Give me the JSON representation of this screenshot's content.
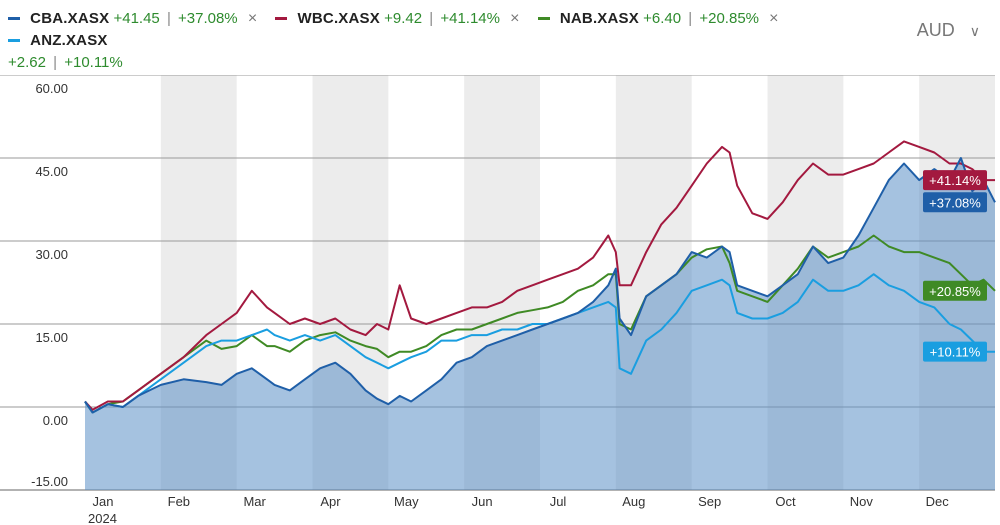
{
  "legend": [
    {
      "ticker": "CBA.XASX",
      "change": "+41.45",
      "pct": "+37.08%",
      "color": "#1f5fa8"
    },
    {
      "ticker": "WBC.XASX",
      "change": "+9.42",
      "pct": "+41.14%",
      "color": "#a3193f"
    },
    {
      "ticker": "NAB.XASX",
      "change": "+6.40",
      "pct": "+20.85%",
      "color": "#3f8a25"
    },
    {
      "ticker": "ANZ.XASX",
      "change": "+2.62",
      "pct": "+10.11%",
      "color": "#1a9ee0"
    }
  ],
  "legend_sep": "|",
  "remove_glyph": "×",
  "currency": {
    "label": "AUD",
    "chevron": "∨"
  },
  "chart_data": {
    "type": "line",
    "y_unit": "% change",
    "ylim": [
      -15,
      60
    ],
    "yticks": [
      60,
      45,
      30,
      15,
      0,
      -15
    ],
    "ytick_labels": [
      "60.00",
      "45.00",
      "30.00",
      "15.00",
      "0.00",
      "-15.00"
    ],
    "xlim": [
      0,
      12
    ],
    "months": [
      "Jan",
      "Feb",
      "Mar",
      "Apr",
      "May",
      "Jun",
      "Jul",
      "Aug",
      "Sep",
      "Oct",
      "Nov",
      "Dec"
    ],
    "year_label": "2024",
    "series": [
      {
        "name": "CBA.XASX",
        "color": "#1f5fa8",
        "area": true,
        "end_label": "+37.08%",
        "points": [
          [
            0,
            1
          ],
          [
            0.1,
            -1
          ],
          [
            0.3,
            0.5
          ],
          [
            0.5,
            0
          ],
          [
            0.7,
            2
          ],
          [
            1.0,
            4
          ],
          [
            1.3,
            5
          ],
          [
            1.6,
            4.5
          ],
          [
            1.8,
            4
          ],
          [
            2.0,
            6
          ],
          [
            2.2,
            7
          ],
          [
            2.4,
            5
          ],
          [
            2.5,
            4
          ],
          [
            2.7,
            3
          ],
          [
            2.9,
            5
          ],
          [
            3.1,
            7
          ],
          [
            3.3,
            8
          ],
          [
            3.5,
            6
          ],
          [
            3.7,
            3
          ],
          [
            3.85,
            1.5
          ],
          [
            4.0,
            0.5
          ],
          [
            4.15,
            2
          ],
          [
            4.3,
            1
          ],
          [
            4.5,
            3
          ],
          [
            4.7,
            5
          ],
          [
            4.9,
            8
          ],
          [
            5.1,
            9
          ],
          [
            5.3,
            11
          ],
          [
            5.5,
            12
          ],
          [
            5.7,
            13
          ],
          [
            5.9,
            14
          ],
          [
            6.1,
            15
          ],
          [
            6.3,
            16
          ],
          [
            6.5,
            17
          ],
          [
            6.7,
            19
          ],
          [
            6.9,
            22
          ],
          [
            7.0,
            25
          ],
          [
            7.05,
            16
          ],
          [
            7.2,
            13
          ],
          [
            7.4,
            20
          ],
          [
            7.6,
            22
          ],
          [
            7.8,
            24
          ],
          [
            8.0,
            28
          ],
          [
            8.2,
            27
          ],
          [
            8.4,
            29
          ],
          [
            8.5,
            28
          ],
          [
            8.6,
            22
          ],
          [
            8.8,
            21
          ],
          [
            9.0,
            20
          ],
          [
            9.2,
            22
          ],
          [
            9.4,
            24
          ],
          [
            9.6,
            29
          ],
          [
            9.8,
            26
          ],
          [
            10.0,
            27
          ],
          [
            10.2,
            31
          ],
          [
            10.4,
            36
          ],
          [
            10.6,
            41
          ],
          [
            10.8,
            44
          ],
          [
            11.0,
            41
          ],
          [
            11.2,
            43
          ],
          [
            11.4,
            41
          ],
          [
            11.55,
            45
          ],
          [
            11.7,
            39
          ],
          [
            11.85,
            41
          ],
          [
            12,
            37
          ]
        ]
      },
      {
        "name": "NAB.XASX",
        "color": "#3f8a25",
        "area": false,
        "end_label": "+20.85%",
        "points": [
          [
            0,
            1
          ],
          [
            0.1,
            -1
          ],
          [
            0.3,
            0.5
          ],
          [
            0.5,
            1
          ],
          [
            0.7,
            3
          ],
          [
            1.0,
            6
          ],
          [
            1.3,
            9
          ],
          [
            1.6,
            12
          ],
          [
            1.8,
            10.5
          ],
          [
            2.0,
            11
          ],
          [
            2.2,
            13
          ],
          [
            2.4,
            11
          ],
          [
            2.5,
            11
          ],
          [
            2.7,
            10
          ],
          [
            2.9,
            12
          ],
          [
            3.1,
            13
          ],
          [
            3.3,
            13.5
          ],
          [
            3.5,
            12
          ],
          [
            3.7,
            11
          ],
          [
            3.85,
            10.5
          ],
          [
            4.0,
            9
          ],
          [
            4.15,
            10
          ],
          [
            4.3,
            10
          ],
          [
            4.5,
            11
          ],
          [
            4.7,
            13
          ],
          [
            4.9,
            14
          ],
          [
            5.1,
            14
          ],
          [
            5.3,
            15
          ],
          [
            5.5,
            16
          ],
          [
            5.7,
            17
          ],
          [
            5.9,
            17.5
          ],
          [
            6.1,
            18
          ],
          [
            6.3,
            19
          ],
          [
            6.5,
            21
          ],
          [
            6.7,
            22
          ],
          [
            6.9,
            24
          ],
          [
            7.0,
            24
          ],
          [
            7.05,
            15
          ],
          [
            7.2,
            14
          ],
          [
            7.4,
            20
          ],
          [
            7.6,
            22
          ],
          [
            7.8,
            24
          ],
          [
            8.0,
            27
          ],
          [
            8.2,
            28.5
          ],
          [
            8.4,
            29
          ],
          [
            8.5,
            26
          ],
          [
            8.6,
            21
          ],
          [
            8.8,
            20
          ],
          [
            9.0,
            19
          ],
          [
            9.2,
            22
          ],
          [
            9.4,
            25
          ],
          [
            9.6,
            29
          ],
          [
            9.8,
            27
          ],
          [
            10.0,
            28
          ],
          [
            10.2,
            29
          ],
          [
            10.4,
            31
          ],
          [
            10.6,
            29
          ],
          [
            10.8,
            28
          ],
          [
            11.0,
            28
          ],
          [
            11.2,
            27
          ],
          [
            11.4,
            26
          ],
          [
            11.55,
            24
          ],
          [
            11.7,
            22
          ],
          [
            11.85,
            23
          ],
          [
            12,
            21
          ]
        ]
      },
      {
        "name": "ANZ.XASX",
        "color": "#1a9ee0",
        "area": false,
        "end_label": "+10.11%",
        "points": [
          [
            0,
            1
          ],
          [
            0.1,
            -1
          ],
          [
            0.3,
            0.5
          ],
          [
            0.5,
            0
          ],
          [
            0.7,
            2
          ],
          [
            1.0,
            5
          ],
          [
            1.3,
            8
          ],
          [
            1.6,
            11
          ],
          [
            1.8,
            12
          ],
          [
            2.0,
            12
          ],
          [
            2.2,
            13
          ],
          [
            2.4,
            14
          ],
          [
            2.5,
            13
          ],
          [
            2.7,
            12
          ],
          [
            2.9,
            13
          ],
          [
            3.1,
            12
          ],
          [
            3.3,
            13
          ],
          [
            3.5,
            11
          ],
          [
            3.7,
            9
          ],
          [
            3.85,
            8
          ],
          [
            4.0,
            7
          ],
          [
            4.15,
            8
          ],
          [
            4.3,
            9
          ],
          [
            4.5,
            10
          ],
          [
            4.7,
            12
          ],
          [
            4.9,
            12
          ],
          [
            5.1,
            13
          ],
          [
            5.3,
            13
          ],
          [
            5.5,
            14
          ],
          [
            5.7,
            14
          ],
          [
            5.9,
            15
          ],
          [
            6.1,
            15
          ],
          [
            6.3,
            16
          ],
          [
            6.5,
            17
          ],
          [
            6.7,
            18
          ],
          [
            6.9,
            19
          ],
          [
            7.0,
            18
          ],
          [
            7.05,
            7
          ],
          [
            7.2,
            6
          ],
          [
            7.4,
            12
          ],
          [
            7.6,
            14
          ],
          [
            7.8,
            17
          ],
          [
            8.0,
            21
          ],
          [
            8.2,
            22
          ],
          [
            8.4,
            23
          ],
          [
            8.5,
            22
          ],
          [
            8.6,
            17
          ],
          [
            8.8,
            16
          ],
          [
            9.0,
            16
          ],
          [
            9.2,
            17
          ],
          [
            9.4,
            19
          ],
          [
            9.6,
            23
          ],
          [
            9.8,
            21
          ],
          [
            10.0,
            21
          ],
          [
            10.2,
            22
          ],
          [
            10.4,
            24
          ],
          [
            10.6,
            22
          ],
          [
            10.8,
            21
          ],
          [
            11.0,
            19
          ],
          [
            11.2,
            18
          ],
          [
            11.4,
            15
          ],
          [
            11.55,
            14
          ],
          [
            11.7,
            12
          ],
          [
            11.85,
            10
          ],
          [
            12,
            10
          ]
        ]
      },
      {
        "name": "WBC.XASX",
        "color": "#a3193f",
        "area": false,
        "end_label": "+41.14%",
        "points": [
          [
            0,
            1
          ],
          [
            0.1,
            -0.5
          ],
          [
            0.3,
            1
          ],
          [
            0.5,
            1
          ],
          [
            0.7,
            3
          ],
          [
            1.0,
            6
          ],
          [
            1.3,
            9
          ],
          [
            1.6,
            13
          ],
          [
            1.8,
            15
          ],
          [
            2.0,
            17
          ],
          [
            2.2,
            21
          ],
          [
            2.4,
            18
          ],
          [
            2.5,
            17
          ],
          [
            2.7,
            15
          ],
          [
            2.9,
            16
          ],
          [
            3.1,
            15
          ],
          [
            3.3,
            16
          ],
          [
            3.5,
            14
          ],
          [
            3.7,
            13
          ],
          [
            3.85,
            15
          ],
          [
            4.0,
            14
          ],
          [
            4.15,
            22
          ],
          [
            4.3,
            16
          ],
          [
            4.5,
            15
          ],
          [
            4.7,
            16
          ],
          [
            4.9,
            17
          ],
          [
            5.1,
            18
          ],
          [
            5.3,
            18
          ],
          [
            5.5,
            19
          ],
          [
            5.7,
            21
          ],
          [
            5.9,
            22
          ],
          [
            6.1,
            23
          ],
          [
            6.3,
            24
          ],
          [
            6.5,
            25
          ],
          [
            6.7,
            27
          ],
          [
            6.9,
            31
          ],
          [
            7.0,
            28
          ],
          [
            7.05,
            22
          ],
          [
            7.2,
            22
          ],
          [
            7.4,
            28
          ],
          [
            7.6,
            33
          ],
          [
            7.8,
            36
          ],
          [
            8.0,
            40
          ],
          [
            8.2,
            44
          ],
          [
            8.4,
            47
          ],
          [
            8.5,
            46
          ],
          [
            8.6,
            40
          ],
          [
            8.8,
            35
          ],
          [
            9.0,
            34
          ],
          [
            9.2,
            37
          ],
          [
            9.4,
            41
          ],
          [
            9.6,
            44
          ],
          [
            9.8,
            42
          ],
          [
            10.0,
            42
          ],
          [
            10.2,
            43
          ],
          [
            10.4,
            44
          ],
          [
            10.6,
            46
          ],
          [
            10.8,
            48
          ],
          [
            11.0,
            47
          ],
          [
            11.2,
            46
          ],
          [
            11.4,
            44
          ],
          [
            11.55,
            44
          ],
          [
            11.7,
            43
          ],
          [
            11.85,
            41
          ],
          [
            12,
            41
          ]
        ]
      }
    ],
    "flag_order": [
      "WBC.XASX",
      "CBA.XASX",
      "NAB.XASX",
      "ANZ.XASX"
    ]
  }
}
